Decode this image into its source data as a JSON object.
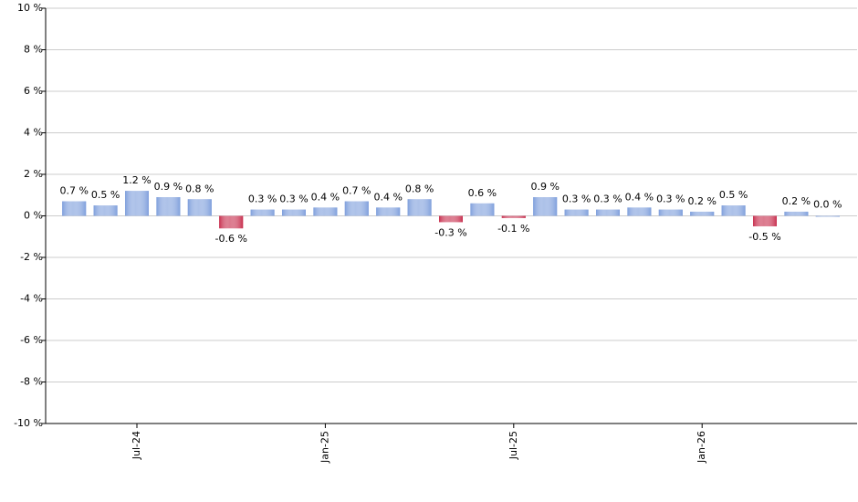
{
  "chart_data": {
    "type": "bar",
    "categories": [
      null,
      null,
      "Jul-24",
      null,
      null,
      null,
      null,
      null,
      "Jan-25",
      null,
      null,
      null,
      null,
      null,
      "Jul-25",
      null,
      null,
      null,
      null,
      null,
      "Jan-26",
      null,
      null,
      null,
      null
    ],
    "values": [
      0.7,
      0.5,
      1.2,
      0.9,
      0.8,
      -0.6,
      0.3,
      0.3,
      0.4,
      0.7,
      0.4,
      0.8,
      -0.3,
      0.6,
      -0.1,
      0.9,
      0.3,
      0.3,
      0.4,
      0.3,
      0.2,
      0.5,
      -0.5,
      0.2,
      0.0
    ],
    "value_labels": [
      "0.7 %",
      "0.5 %",
      "1.2 %",
      "0.9 %",
      "0.8 %",
      "-0.6 %",
      "0.3 %",
      "0.3 %",
      "0.4 %",
      "0.7 %",
      "0.4 %",
      "0.8 %",
      "-0.3 %",
      "0.6 %",
      "-0.1 %",
      "0.9 %",
      "0.3 %",
      "0.3 %",
      "0.4 %",
      "0.3 %",
      "0.2 %",
      "0.5 %",
      "-0.5 %",
      "0.2 %",
      "0.0 %"
    ],
    "positive_color": "#7f9fdc",
    "negative_color": "#c8304f",
    "ylim": [
      -10,
      10
    ],
    "yticks": [
      {
        "value": -10,
        "label": "-10 %"
      },
      {
        "value": -8,
        "label": "-8 %"
      },
      {
        "value": -6,
        "label": "-6 %"
      },
      {
        "value": -4,
        "label": "-4 %"
      },
      {
        "value": -2,
        "label": "-2 %"
      },
      {
        "value": 0,
        "label": "0 %"
      },
      {
        "value": 2,
        "label": "2 %"
      },
      {
        "value": 4,
        "label": "4 %"
      },
      {
        "value": 6,
        "label": "6 %"
      },
      {
        "value": 8,
        "label": "8 %"
      },
      {
        "value": 10,
        "label": "10 %"
      }
    ],
    "grid": true
  }
}
